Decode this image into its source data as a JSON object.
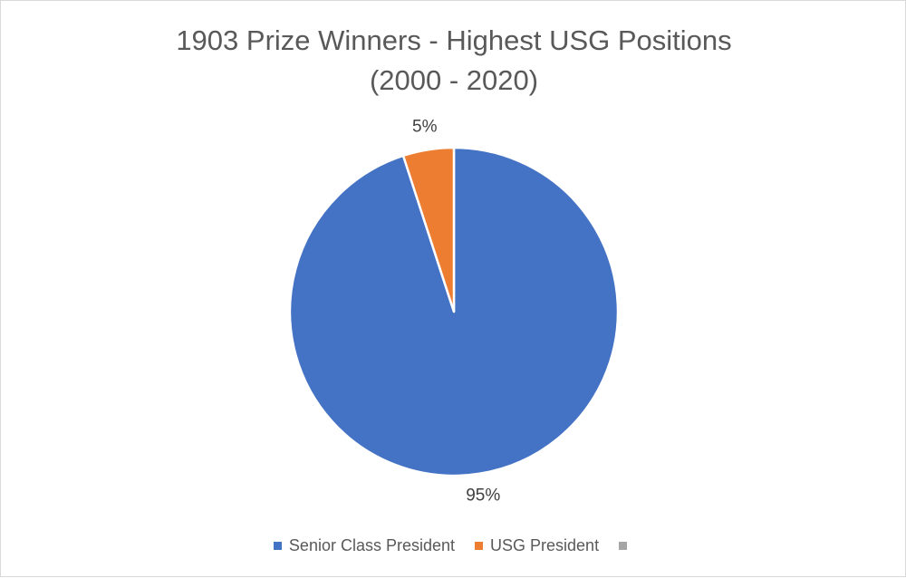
{
  "chart_data": {
    "type": "pie",
    "title": "1903 Prize Winners - Highest USG Positions",
    "subtitle": "(2000 - 2020)",
    "series": [
      {
        "name": "Senior Class President",
        "value": 95,
        "label": "95%",
        "color": "#4472C4"
      },
      {
        "name": "USG President",
        "value": 5,
        "label": "5%",
        "color": "#ED7D31"
      },
      {
        "name": "",
        "value": 0,
        "label": "",
        "color": "#A5A5A5"
      }
    ],
    "legend_position": "bottom"
  }
}
